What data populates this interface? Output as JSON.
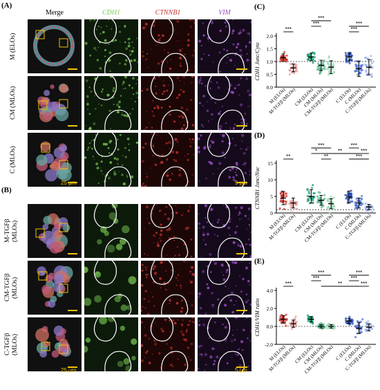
{
  "panels": {
    "A": "(A)",
    "B": "(B)",
    "C": "(C)",
    "D": "(D)",
    "E": "(E)"
  },
  "columns": {
    "merge": "Merge",
    "cdh1": "CDH1",
    "ctnnb1": "CTNNB1",
    "vim": "VIM"
  },
  "rows_a": [
    {
      "line1": "M (ELOs)",
      "line2": ""
    },
    {
      "line1": "CM (MLOs)",
      "line2": ""
    },
    {
      "line1": "C (MLOs)",
      "line2": ""
    }
  ],
  "rows_b": [
    {
      "line1": "M-TGFβ",
      "line2": "(MLOs)"
    },
    {
      "line1": "CM-TGFβ",
      "line2": "(MLOs)"
    },
    {
      "line1": "C-TGFβ",
      "line2": "(MLOs)"
    }
  ],
  "scale_bars": {
    "merge": "25 μm",
    "zoom": "5 μm"
  },
  "colors": {
    "cdh1": "#7ccc55",
    "ctnnb1": "#c8352e",
    "vim": "#9a4fc0",
    "scale": "#f2c400"
  },
  "chart_data": [
    {
      "type": "scatter",
      "panel": "C",
      "ylabel": "CDH1 Junc/Cyto",
      "ylim": [
        0.0,
        2.0
      ],
      "yticks": [
        "0.0",
        "0.5",
        "1.0",
        "1.5",
        "2.0"
      ],
      "reference_line": 1.0,
      "categories": [
        "M (ELOs)",
        "M-TGFβ (MLOs)",
        "CM (ELOs)",
        "CM (MLOs)",
        "CM-TGFβ (MLOs)",
        "C (ELOs)",
        "C (MLOs)",
        "C-TGFβ (MLOs)"
      ],
      "groups": [
        0,
        0,
        1,
        1,
        1,
        2,
        2,
        2
      ],
      "point_colors": [
        "#c8352e",
        "#e8a1a0",
        "#1f9e78",
        "#58b98e",
        "#9ed8b4",
        "#2b4fb6",
        "#4f73d9",
        "#9cb3ea"
      ],
      "mean": [
        1.15,
        0.75,
        1.18,
        0.85,
        0.78,
        1.18,
        0.72,
        0.78
      ],
      "sd": [
        0.15,
        0.15,
        0.15,
        0.2,
        0.25,
        0.15,
        0.3,
        0.3
      ],
      "comparisons": [
        {
          "pair": [
            0,
            1
          ],
          "label": "***"
        },
        {
          "pair": [
            2,
            3
          ],
          "label": "***"
        },
        {
          "pair": [
            2,
            4
          ],
          "label": "***"
        },
        {
          "pair": [
            5,
            6
          ],
          "label": "***"
        },
        {
          "pair": [
            5,
            7
          ],
          "label": "***"
        }
      ]
    },
    {
      "type": "scatter",
      "panel": "D",
      "ylabel": "CTNNB1 Junc/Nuc",
      "ylim": [
        0,
        15
      ],
      "yticks": [
        "0",
        "5",
        "10",
        "15"
      ],
      "reference_line": 1,
      "categories": [
        "M (ELOs)",
        "M-TGFβ (MLOs)",
        "CM (ELOs)",
        "CM (MLOs)",
        "CM-TGFβ (MLOs)",
        "C (ELOs)",
        "C (MLOs)",
        "C-TGFβ (MLOs)"
      ],
      "groups": [
        0,
        0,
        1,
        1,
        1,
        2,
        2,
        2
      ],
      "point_colors": [
        "#c8352e",
        "#e8a1a0",
        "#1f9e78",
        "#58b98e",
        "#9ed8b4",
        "#2b4fb6",
        "#4f73d9",
        "#9cb3ea"
      ],
      "mean": [
        4.5,
        3.0,
        5.0,
        3.8,
        2.8,
        4.8,
        3.0,
        1.8
      ],
      "sd": [
        2.0,
        1.5,
        2.0,
        1.5,
        1.5,
        1.8,
        1.5,
        0.8
      ],
      "comparisons": [
        {
          "pair": [
            0,
            1
          ],
          "label": "**"
        },
        {
          "pair": [
            2,
            3
          ],
          "label": "*"
        },
        {
          "pair": [
            2,
            4
          ],
          "label": "***"
        },
        {
          "pair": [
            3,
            4
          ],
          "label": "**"
        },
        {
          "pair": [
            3,
            6
          ],
          "label": "**"
        },
        {
          "pair": [
            5,
            6
          ],
          "label": "***"
        },
        {
          "pair": [
            5,
            7
          ],
          "label": "***"
        },
        {
          "pair": [
            6,
            7
          ],
          "label": "***"
        }
      ]
    },
    {
      "type": "scatter",
      "panel": "E",
      "ylabel": "CDH1/VIM ratio",
      "ylim": [
        -2.0,
        4.0
      ],
      "yticks": [
        "-2.0",
        "0.0",
        "2.0",
        "4.0"
      ],
      "reference_line": 0,
      "categories": [
        "M (ELOs)",
        "M-TGFβ (MLOs)",
        "CM (ELOs)",
        "CM (MLOs)",
        "CM-TGFβ (MLOs)",
        "C (ELOs)",
        "C (MLOs)",
        "C-TGFβ (MLOs)"
      ],
      "groups": [
        0,
        0,
        1,
        1,
        1,
        2,
        2,
        2
      ],
      "point_colors": [
        "#c8352e",
        "#e8a1a0",
        "#1f9e78",
        "#58b98e",
        "#9ed8b4",
        "#2b4fb6",
        "#4f73d9",
        "#9cb3ea"
      ],
      "mean": [
        0.8,
        0.3,
        0.8,
        0.0,
        0.0,
        0.6,
        -0.2,
        -0.1
      ],
      "sd": [
        0.4,
        0.4,
        0.3,
        0.2,
        0.2,
        0.3,
        0.6,
        0.4
      ],
      "comparisons": [
        {
          "pair": [
            0,
            1
          ],
          "label": "***"
        },
        {
          "pair": [
            2,
            3
          ],
          "label": "***"
        },
        {
          "pair": [
            2,
            4
          ],
          "label": "***"
        },
        {
          "pair": [
            3,
            6
          ],
          "label": "**"
        },
        {
          "pair": [
            5,
            6
          ],
          "label": "***"
        },
        {
          "pair": [
            5,
            7
          ],
          "label": "***"
        },
        {
          "pair": [
            6,
            7
          ],
          "label": "***"
        }
      ]
    }
  ]
}
